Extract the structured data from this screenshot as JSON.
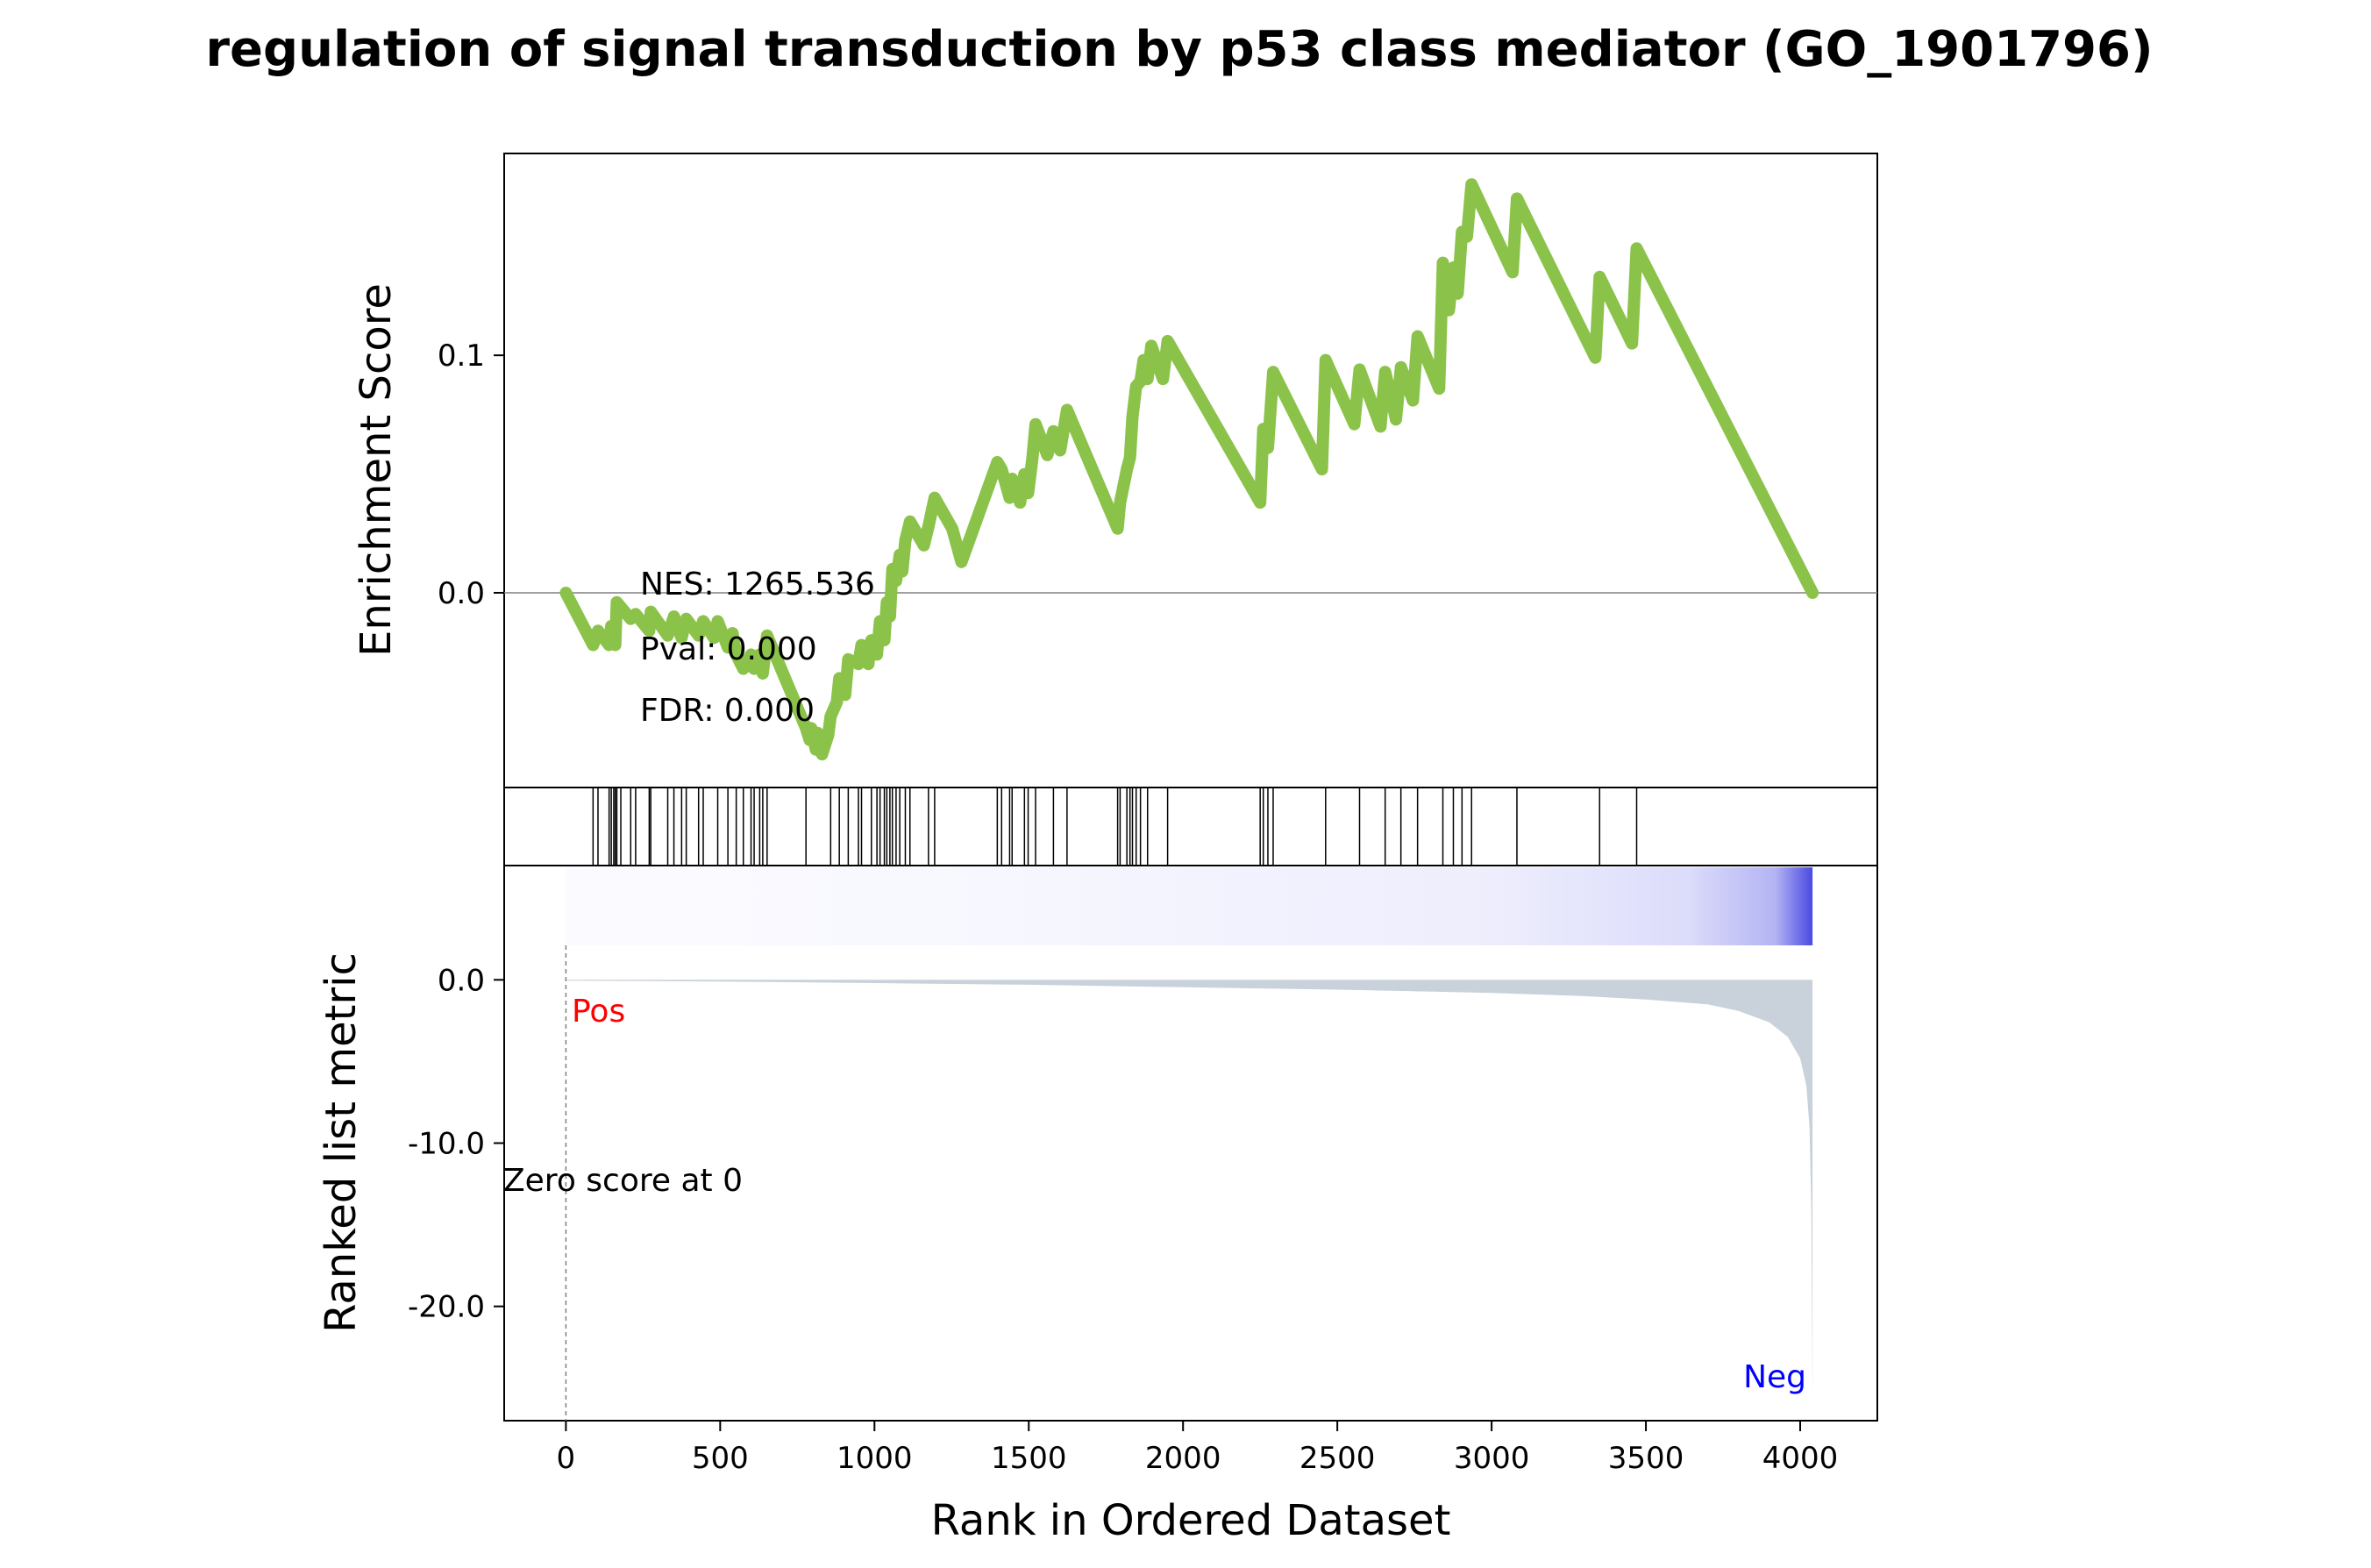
{
  "chart_data": {
    "type": "line",
    "title": "regulation of signal transduction by p53 class mediator (GO_1901796)",
    "xlabel": "Rank in Ordered Dataset",
    "xlim": [
      -200,
      4250
    ],
    "x_ticks": [
      0,
      500,
      1000,
      1500,
      2000,
      2500,
      3000,
      3500,
      4000
    ],
    "x_tick_labels": [
      "0",
      "500",
      "1000",
      "1500",
      "2000",
      "2500",
      "3000",
      "3500",
      "4000"
    ],
    "enrichment": {
      "ylabel": "Enrichment Score",
      "ylim": [
        -0.082,
        0.185
      ],
      "y_ticks": [
        0.0,
        0.1
      ],
      "y_tick_labels": [
        "0.0",
        "0.1"
      ],
      "line_color": "#8bc34a",
      "stats": {
        "nes": "NES: 1265.536",
        "pval": "Pval: 0.000",
        "fdr": "FDR: 0.000"
      },
      "points": [
        [
          0,
          0.0
        ],
        [
          88,
          -0.022
        ],
        [
          104,
          -0.016
        ],
        [
          140,
          -0.022
        ],
        [
          147,
          -0.014
        ],
        [
          160,
          -0.022
        ],
        [
          165,
          -0.004
        ],
        [
          210,
          -0.011
        ],
        [
          226,
          -0.009
        ],
        [
          270,
          -0.016
        ],
        [
          275,
          -0.008
        ],
        [
          330,
          -0.018
        ],
        [
          350,
          -0.01
        ],
        [
          375,
          -0.019
        ],
        [
          390,
          -0.011
        ],
        [
          430,
          -0.018
        ],
        [
          445,
          -0.012
        ],
        [
          480,
          -0.019
        ],
        [
          492,
          -0.012
        ],
        [
          525,
          -0.023
        ],
        [
          540,
          -0.017
        ],
        [
          552,
          -0.026
        ],
        [
          575,
          -0.032
        ],
        [
          600,
          -0.026
        ],
        [
          610,
          -0.032
        ],
        [
          628,
          -0.026
        ],
        [
          638,
          -0.034
        ],
        [
          652,
          -0.018
        ],
        [
          778,
          -0.057
        ],
        [
          790,
          -0.062
        ],
        [
          795,
          -0.057
        ],
        [
          810,
          -0.066
        ],
        [
          816,
          -0.059
        ],
        [
          830,
          -0.068
        ],
        [
          850,
          -0.06
        ],
        [
          858,
          -0.052
        ],
        [
          878,
          -0.046
        ],
        [
          886,
          -0.036
        ],
        [
          905,
          -0.043
        ],
        [
          915,
          -0.028
        ],
        [
          948,
          -0.03
        ],
        [
          958,
          -0.022
        ],
        [
          980,
          -0.03
        ],
        [
          990,
          -0.02
        ],
        [
          1008,
          -0.026
        ],
        [
          1018,
          -0.012
        ],
        [
          1032,
          -0.02
        ],
        [
          1040,
          -0.004
        ],
        [
          1050,
          -0.01
        ],
        [
          1058,
          0.01
        ],
        [
          1070,
          0.005
        ],
        [
          1082,
          0.016
        ],
        [
          1090,
          0.009
        ],
        [
          1100,
          0.022
        ],
        [
          1115,
          0.03
        ],
        [
          1160,
          0.02
        ],
        [
          1175,
          0.028
        ],
        [
          1195,
          0.04
        ],
        [
          1252,
          0.027
        ],
        [
          1282,
          0.013
        ],
        [
          1398,
          0.055
        ],
        [
          1412,
          0.052
        ],
        [
          1438,
          0.04
        ],
        [
          1446,
          0.048
        ],
        [
          1472,
          0.038
        ],
        [
          1486,
          0.05
        ],
        [
          1498,
          0.042
        ],
        [
          1512,
          0.057
        ],
        [
          1522,
          0.071
        ],
        [
          1560,
          0.058
        ],
        [
          1580,
          0.068
        ],
        [
          1602,
          0.06
        ],
        [
          1624,
          0.077
        ],
        [
          1788,
          0.027
        ],
        [
          1796,
          0.038
        ],
        [
          1818,
          0.052
        ],
        [
          1828,
          0.057
        ],
        [
          1836,
          0.074
        ],
        [
          1848,
          0.087
        ],
        [
          1862,
          0.089
        ],
        [
          1872,
          0.098
        ],
        [
          1885,
          0.09
        ],
        [
          1897,
          0.104
        ],
        [
          1935,
          0.09
        ],
        [
          1950,
          0.106
        ],
        [
          2250,
          0.038
        ],
        [
          2260,
          0.069
        ],
        [
          2275,
          0.061
        ],
        [
          2292,
          0.093
        ],
        [
          2450,
          0.052
        ],
        [
          2462,
          0.098
        ],
        [
          2555,
          0.071
        ],
        [
          2572,
          0.094
        ],
        [
          2640,
          0.07
        ],
        [
          2655,
          0.093
        ],
        [
          2690,
          0.073
        ],
        [
          2706,
          0.095
        ],
        [
          2745,
          0.081
        ],
        [
          2760,
          0.108
        ],
        [
          2830,
          0.086
        ],
        [
          2842,
          0.139
        ],
        [
          2862,
          0.119
        ],
        [
          2876,
          0.137
        ],
        [
          2890,
          0.126
        ],
        [
          2904,
          0.152
        ],
        [
          2920,
          0.15
        ],
        [
          2935,
          0.172
        ],
        [
          3068,
          0.135
        ],
        [
          3082,
          0.166
        ],
        [
          3336,
          0.099
        ],
        [
          3350,
          0.133
        ],
        [
          3455,
          0.105
        ],
        [
          3470,
          0.145
        ],
        [
          4040,
          0.0
        ]
      ]
    },
    "hits": {
      "positions": [
        88,
        104,
        140,
        147,
        155,
        160,
        165,
        178,
        210,
        226,
        270,
        275,
        330,
        350,
        375,
        390,
        430,
        445,
        492,
        525,
        552,
        575,
        600,
        610,
        628,
        638,
        652,
        778,
        858,
        886,
        915,
        948,
        958,
        990,
        1008,
        1018,
        1032,
        1040,
        1050,
        1058,
        1070,
        1082,
        1100,
        1115,
        1175,
        1195,
        1398,
        1412,
        1438,
        1446,
        1486,
        1498,
        1522,
        1580,
        1624,
        1788,
        1796,
        1818,
        1828,
        1836,
        1848,
        1862,
        1885,
        1950,
        2250,
        2260,
        2275,
        2292,
        2462,
        2572,
        2655,
        2706,
        2760,
        2842,
        2876,
        2904,
        2935,
        3082,
        3350,
        3470
      ]
    },
    "ranked": {
      "ylabel": "Ranked list metric",
      "ylim": [
        -27,
        7
      ],
      "y_ticks": [
        0.0,
        -10.0,
        -20.0
      ],
      "y_tick_labels": [
        "0.0",
        "-10.0",
        "-20.0"
      ],
      "fill_color": "#c9d2da",
      "pos_label": "Pos",
      "neg_label": "Neg",
      "pos_color": "#ff0000",
      "neg_color": "#0000ff",
      "zero_label": "Zero score at 0",
      "zero_x": 0,
      "n": 4040,
      "curve": [
        [
          0,
          -0.05
        ],
        [
          500,
          -0.1
        ],
        [
          1000,
          -0.2
        ],
        [
          1500,
          -0.3
        ],
        [
          2000,
          -0.45
        ],
        [
          2500,
          -0.6
        ],
        [
          3000,
          -0.8
        ],
        [
          3300,
          -1.0
        ],
        [
          3500,
          -1.2
        ],
        [
          3700,
          -1.5
        ],
        [
          3800,
          -1.9
        ],
        [
          3900,
          -2.6
        ],
        [
          3960,
          -3.5
        ],
        [
          4000,
          -4.8
        ],
        [
          4020,
          -6.5
        ],
        [
          4030,
          -9.0
        ],
        [
          4036,
          -14.0
        ],
        [
          4040,
          -25.8
        ]
      ]
    }
  }
}
